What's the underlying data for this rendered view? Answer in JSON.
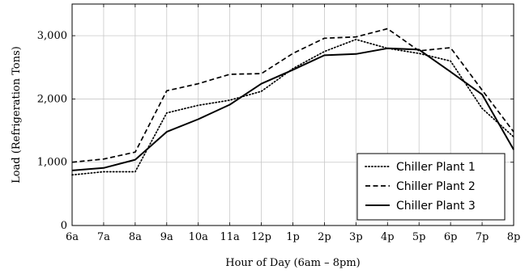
{
  "chart_data": {
    "type": "line",
    "title": "",
    "xlabel": "Hour of Day (6am – 8pm)",
    "ylabel": "Load (Refrigeration Tons)",
    "x": [
      "6a",
      "7a",
      "8a",
      "9a",
      "10a",
      "11a",
      "12p",
      "1p",
      "2p",
      "3p",
      "4p",
      "5p",
      "6p",
      "7p",
      "8p"
    ],
    "ylim": [
      0,
      3500
    ],
    "yticks": [
      0,
      1000,
      2000,
      3000
    ],
    "ytick_labels": [
      "0",
      "1,000",
      "2,000",
      "3,000"
    ],
    "grid": true,
    "legend_position": "bottom-right",
    "series": [
      {
        "name": "Chiller Plant 1",
        "style": "dotted",
        "color": "#000000",
        "values": [
          800,
          850,
          850,
          1780,
          1900,
          1980,
          2120,
          2480,
          2750,
          2940,
          2800,
          2720,
          2600,
          1850,
          1400
        ]
      },
      {
        "name": "Chiller Plant 2",
        "style": "dashed",
        "color": "#000000",
        "values": [
          1000,
          1050,
          1160,
          2130,
          2240,
          2390,
          2400,
          2720,
          2960,
          2980,
          3110,
          2760,
          2810,
          2140,
          1480
        ]
      },
      {
        "name": "Chiller Plant 3",
        "style": "solid",
        "color": "#000000",
        "values": [
          870,
          910,
          1040,
          1480,
          1680,
          1910,
          2240,
          2460,
          2690,
          2710,
          2800,
          2780,
          2430,
          2070,
          1200
        ]
      }
    ]
  }
}
